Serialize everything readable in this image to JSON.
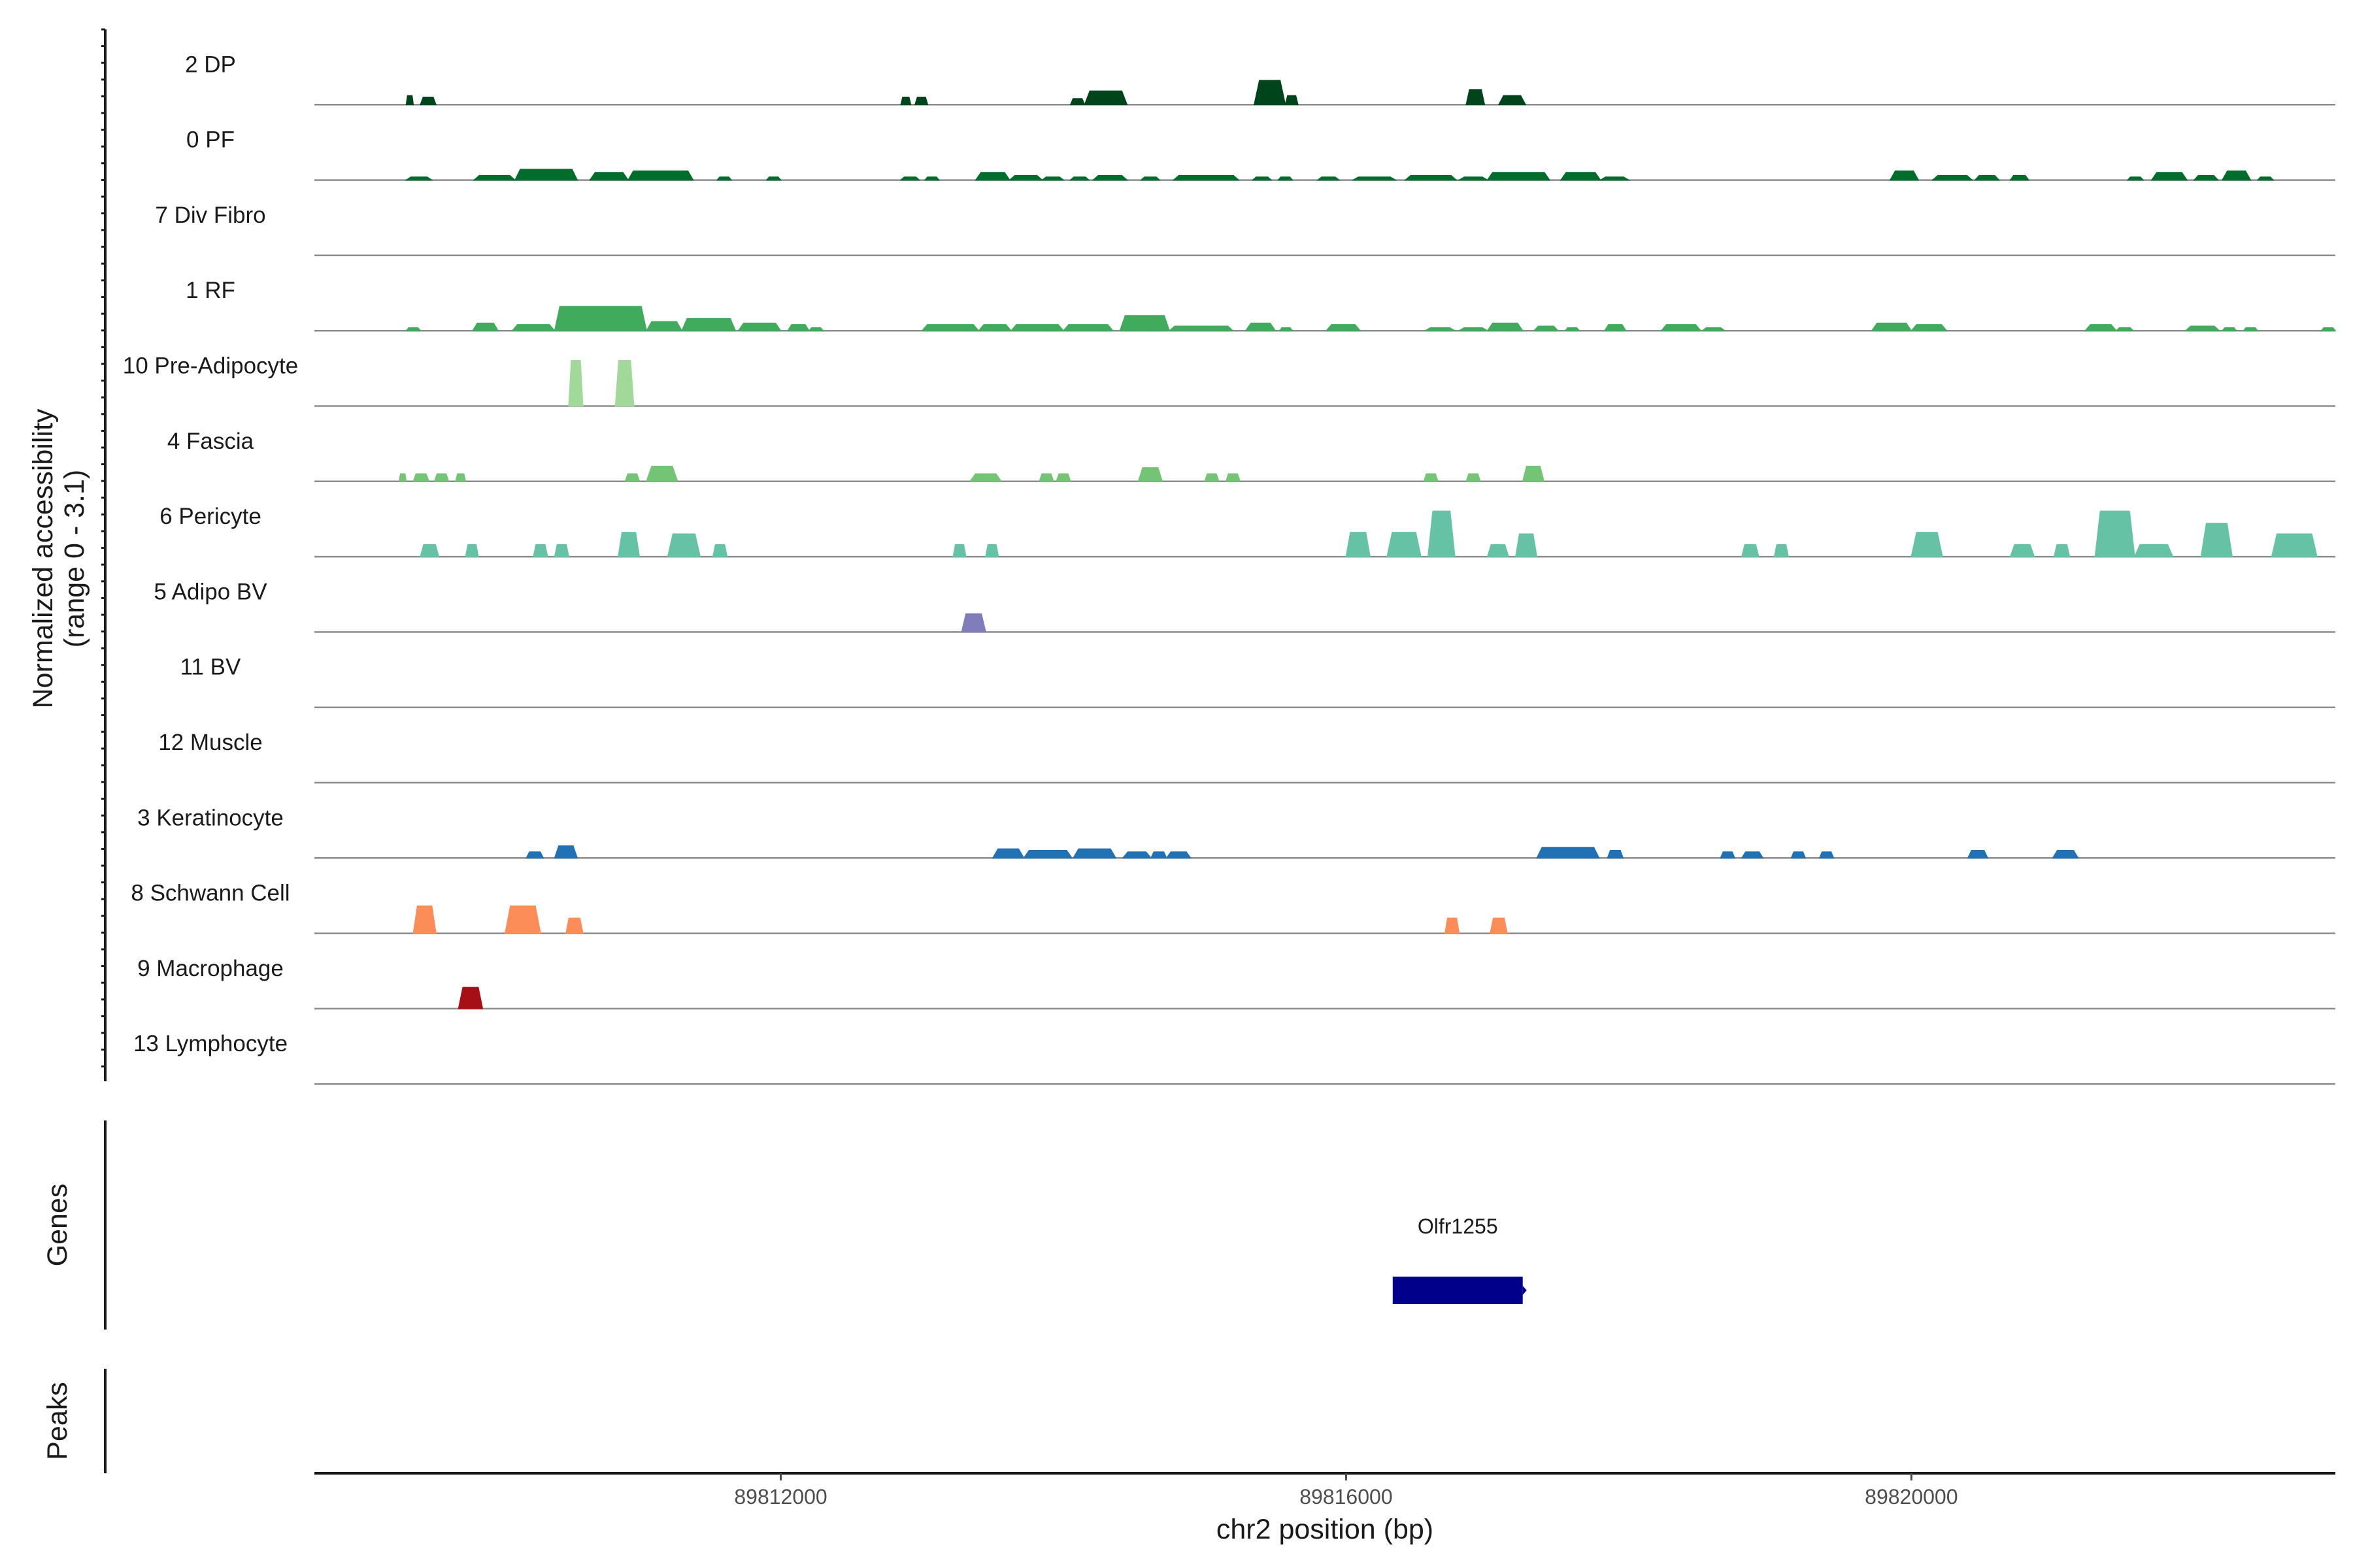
{
  "chart_data": {
    "type": "area",
    "title": "",
    "ylabel": "Normalized accessibility",
    "ylabel_range": "(range 0 - 3.1)",
    "xlabel": "chr2 position (bp)",
    "xlim": [
      89808700,
      89823000
    ],
    "ylim": [
      0,
      3.1
    ],
    "x_ticks": [
      89812000,
      89816000,
      89820000
    ],
    "x_tick_labels": [
      "89812000",
      "89816000",
      "89820000"
    ],
    "series": [
      {
        "name": "2 DP",
        "color": "#00441b",
        "peaks": [
          [
            89809350,
            89809400,
            0.6
          ],
          [
            89809450,
            89809560,
            0.5
          ],
          [
            89812850,
            89812920,
            0.5
          ],
          [
            89812950,
            89813040,
            0.5
          ],
          [
            89814050,
            89814150,
            0.4
          ],
          [
            89814150,
            89814450,
            0.9
          ],
          [
            89815350,
            89815570,
            1.6
          ],
          [
            89815570,
            89815660,
            0.6
          ],
          [
            89816850,
            89816980,
            1.0
          ],
          [
            89817080,
            89817270,
            0.6
          ]
        ]
      },
      {
        "name": "0 PF",
        "color": "#006d2c",
        "peaks": [
          [
            89809350,
            89809530,
            0.2
          ],
          [
            89809830,
            89810120,
            0.3
          ],
          [
            89810120,
            89810560,
            0.7
          ],
          [
            89810650,
            89810920,
            0.5
          ],
          [
            89810920,
            89811380,
            0.6
          ],
          [
            89811550,
            89811650,
            0.2
          ],
          [
            89811900,
            89812000,
            0.2
          ],
          [
            89812850,
            89812980,
            0.2
          ],
          [
            89813020,
            89813120,
            0.2
          ],
          [
            89813380,
            89813620,
            0.5
          ],
          [
            89813620,
            89813850,
            0.3
          ],
          [
            89813850,
            89814000,
            0.2
          ],
          [
            89814050,
            89814180,
            0.2
          ],
          [
            89814210,
            89814450,
            0.3
          ],
          [
            89814550,
            89814680,
            0.2
          ],
          [
            89814780,
            89815240,
            0.3
          ],
          [
            89815340,
            89815470,
            0.2
          ],
          [
            89815520,
            89815620,
            0.2
          ],
          [
            89815800,
            89815950,
            0.2
          ],
          [
            89816050,
            89816350,
            0.2
          ],
          [
            89816420,
            89816780,
            0.3
          ],
          [
            89816800,
            89817000,
            0.2
          ],
          [
            89817000,
            89817440,
            0.5
          ],
          [
            89817520,
            89817800,
            0.5
          ],
          [
            89817800,
            89818000,
            0.2
          ],
          [
            89819850,
            89820050,
            0.6
          ],
          [
            89820150,
            89820430,
            0.3
          ],
          [
            89820450,
            89820620,
            0.3
          ],
          [
            89820700,
            89820830,
            0.3
          ],
          [
            89821530,
            89821640,
            0.2
          ],
          [
            89821700,
            89821950,
            0.5
          ],
          [
            89822000,
            89822170,
            0.3
          ],
          [
            89822200,
            89822400,
            0.6
          ],
          [
            89822450,
            89822560,
            0.2
          ]
        ]
      },
      {
        "name": "7 Div Fibro",
        "color": "#238b45",
        "peaks": []
      },
      {
        "name": "1 RF",
        "color": "#41ab5d",
        "peaks": [
          [
            89809350,
            89809450,
            0.2
          ],
          [
            89809820,
            89810000,
            0.5
          ],
          [
            89810100,
            89810400,
            0.4
          ],
          [
            89810400,
            89811050,
            1.6
          ],
          [
            89811050,
            89811300,
            0.6
          ],
          [
            89811300,
            89811680,
            0.8
          ],
          [
            89811700,
            89812000,
            0.5
          ],
          [
            89812050,
            89812200,
            0.4
          ],
          [
            89812200,
            89812300,
            0.2
          ],
          [
            89813000,
            89813400,
            0.4
          ],
          [
            89813400,
            89813630,
            0.4
          ],
          [
            89813630,
            89814000,
            0.4
          ],
          [
            89814000,
            89814350,
            0.4
          ],
          [
            89814400,
            89814750,
            1.0
          ],
          [
            89814750,
            89815200,
            0.3
          ],
          [
            89815290,
            89815500,
            0.5
          ],
          [
            89815530,
            89815620,
            0.2
          ],
          [
            89815860,
            89816100,
            0.4
          ],
          [
            89816560,
            89816770,
            0.2
          ],
          [
            89816800,
            89817000,
            0.2
          ],
          [
            89817000,
            89817250,
            0.5
          ],
          [
            89817330,
            89817500,
            0.3
          ],
          [
            89817550,
            89817650,
            0.2
          ],
          [
            89817830,
            89817980,
            0.4
          ],
          [
            89818230,
            89818510,
            0.4
          ],
          [
            89818520,
            89818680,
            0.2
          ],
          [
            89819720,
            89820000,
            0.5
          ],
          [
            89820000,
            89820250,
            0.4
          ],
          [
            89821230,
            89821450,
            0.4
          ],
          [
            89821450,
            89821570,
            0.2
          ],
          [
            89821940,
            89822180,
            0.3
          ],
          [
            89822200,
            89822300,
            0.2
          ],
          [
            89822350,
            89822450,
            0.2
          ],
          [
            89822900,
            89823000,
            0.2
          ]
        ]
      },
      {
        "name": "10 Pre-Adipocyte",
        "color": "#a1d99b",
        "peaks": [
          [
            89810500,
            89810600,
            3.0
          ],
          [
            89810830,
            89810960,
            3.0
          ]
        ]
      },
      {
        "name": "4 Fascia",
        "color": "#74c476",
        "peaks": [
          [
            89809300,
            89809350,
            0.5
          ],
          [
            89809400,
            89809510,
            0.5
          ],
          [
            89809550,
            89809650,
            0.5
          ],
          [
            89809700,
            89809770,
            0.5
          ],
          [
            89810900,
            89811000,
            0.5
          ],
          [
            89811050,
            89811270,
            1.0
          ],
          [
            89813340,
            89813560,
            0.5
          ],
          [
            89813830,
            89813930,
            0.5
          ],
          [
            89813950,
            89814050,
            0.5
          ],
          [
            89814530,
            89814700,
            0.9
          ],
          [
            89815000,
            89815100,
            0.5
          ],
          [
            89815150,
            89815250,
            0.5
          ],
          [
            89816550,
            89816650,
            0.5
          ],
          [
            89816850,
            89816950,
            0.5
          ],
          [
            89817250,
            89817400,
            1.0
          ]
        ]
      },
      {
        "name": "6 Pericyte",
        "color": "#66c2a4",
        "peaks": [
          [
            89809450,
            89809580,
            0.8
          ],
          [
            89809770,
            89809860,
            0.8
          ],
          [
            89810250,
            89810350,
            0.8
          ],
          [
            89810400,
            89810500,
            0.8
          ],
          [
            89810850,
            89811000,
            1.6
          ],
          [
            89811200,
            89811430,
            1.5
          ],
          [
            89811520,
            89811620,
            0.8
          ],
          [
            89813220,
            89813310,
            0.8
          ],
          [
            89813450,
            89813540,
            0.8
          ],
          [
            89816000,
            89816170,
            1.6
          ],
          [
            89816290,
            89816530,
            1.6
          ],
          [
            89816580,
            89816770,
            3.0
          ],
          [
            89817000,
            89817150,
            0.8
          ],
          [
            89817200,
            89817350,
            1.5
          ],
          [
            89818800,
            89818920,
            0.8
          ],
          [
            89819030,
            89819130,
            0.8
          ],
          [
            89820000,
            89820220,
            1.6
          ],
          [
            89820700,
            89820870,
            0.8
          ],
          [
            89821010,
            89821120,
            0.8
          ],
          [
            89821300,
            89821580,
            3.0
          ],
          [
            89821580,
            89821850,
            0.8
          ],
          [
            89822050,
            89822270,
            2.2
          ],
          [
            89822550,
            89822870,
            1.5
          ]
        ]
      },
      {
        "name": "5 Adipo BV",
        "color": "#807dba",
        "peaks": [
          [
            89813280,
            89813450,
            1.2
          ]
        ]
      },
      {
        "name": "11 BV",
        "color": "#6a51a3",
        "peaks": []
      },
      {
        "name": "12 Muscle",
        "color": "#54278f",
        "peaks": []
      },
      {
        "name": "3 Keratinocyte",
        "color": "#2171b5",
        "peaks": [
          [
            89810200,
            89810320,
            0.4
          ],
          [
            89810400,
            89810560,
            0.8
          ],
          [
            89813500,
            89813720,
            0.6
          ],
          [
            89813720,
            89814060,
            0.5
          ],
          [
            89814070,
            89814370,
            0.6
          ],
          [
            89814420,
            89814620,
            0.4
          ],
          [
            89814620,
            89814730,
            0.4
          ],
          [
            89814730,
            89814900,
            0.4
          ],
          [
            89817350,
            89817790,
            0.7
          ],
          [
            89817850,
            89817960,
            0.5
          ],
          [
            89818650,
            89818750,
            0.4
          ],
          [
            89818800,
            89818950,
            0.4
          ],
          [
            89819150,
            89819250,
            0.4
          ],
          [
            89819350,
            89819450,
            0.4
          ],
          [
            89820400,
            89820540,
            0.5
          ],
          [
            89821000,
            89821180,
            0.5
          ]
        ]
      },
      {
        "name": "8 Schwann Cell",
        "color": "#fc8d59",
        "peaks": [
          [
            89809400,
            89809560,
            1.8
          ],
          [
            89810050,
            89810300,
            1.8
          ],
          [
            89810480,
            89810600,
            1.0
          ],
          [
            89816700,
            89816800,
            1.0
          ],
          [
            89817020,
            89817140,
            1.0
          ]
        ]
      },
      {
        "name": "9 Macrophage",
        "color": "#a50f15",
        "peaks": [
          [
            89809720,
            89809890,
            1.4
          ]
        ]
      },
      {
        "name": "13 Lymphocyte",
        "color": "#fee0d2",
        "peaks": []
      }
    ],
    "genes": [
      {
        "name": "Olfr1255",
        "start": 89816330,
        "end": 89817250,
        "color": "#00008b"
      }
    ],
    "panels": [
      "Genes",
      "Peaks"
    ]
  }
}
